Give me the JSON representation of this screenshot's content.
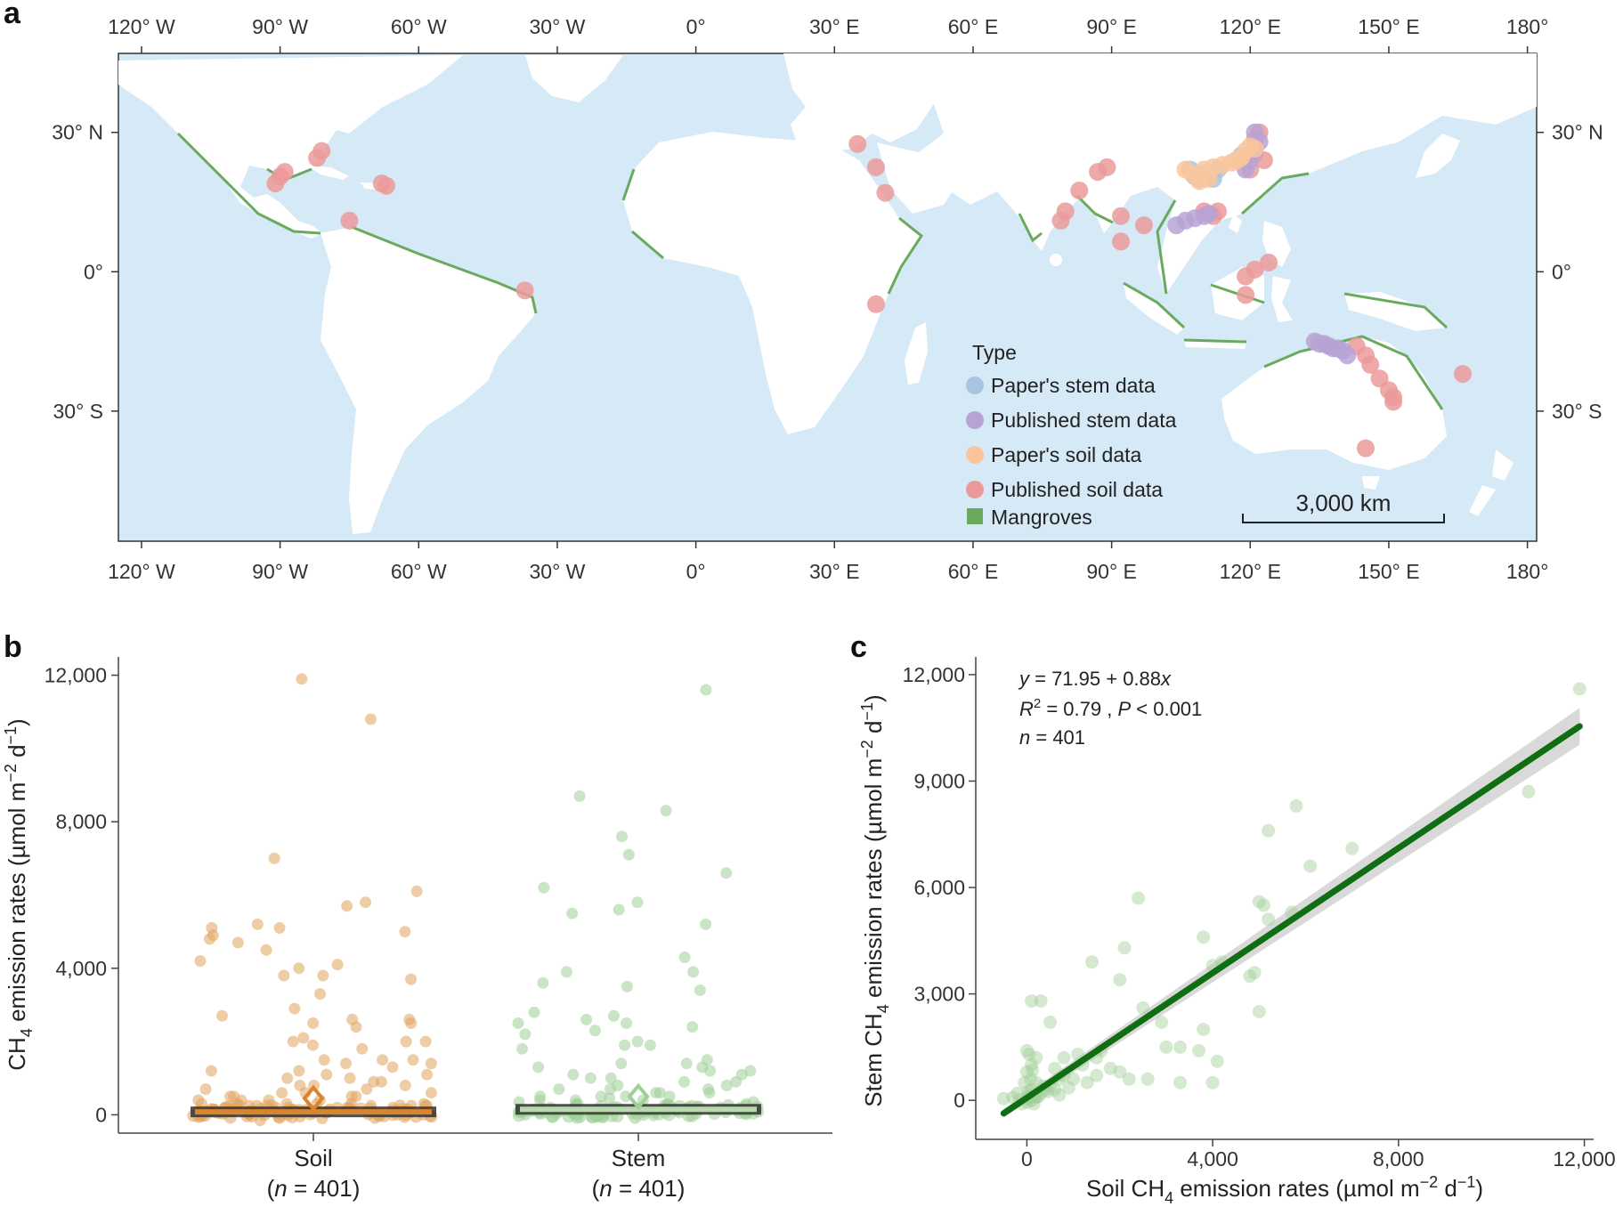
{
  "panel_labels": {
    "a": "a",
    "b": "b",
    "c": "c"
  },
  "colors": {
    "ocean": "#d5e9f7",
    "land": "#ffffff",
    "mangrove": "#6aaa5e",
    "papers_stem": "#a9c4e0",
    "published_stem": "#b7a3d4",
    "papers_soil": "#f9c59d",
    "published_soil": "#eb9a9a",
    "soil_points": "#e0a45c",
    "stem_points": "#9fcf97",
    "fit_line": "#0f6e12",
    "ci_band": "#cfcfcf"
  },
  "chart_data": [
    {
      "type": "scatter",
      "panel": "a",
      "title": "",
      "x_ticks_top": [
        "120° W",
        "90° W",
        "60° W",
        "30° W",
        "0°",
        "30° E",
        "60° E",
        "90° E",
        "120° E",
        "150° E",
        "180°"
      ],
      "x_ticks_bottom": [
        "120° W",
        "90° W",
        "60° W",
        "30° W",
        "0°",
        "30° E",
        "60° E",
        "90° E",
        "120° E",
        "150° E",
        "180°"
      ],
      "y_ticks_left": [
        "30° N",
        "0°",
        "30° S"
      ],
      "y_ticks_right": [
        "30° N",
        "0°",
        "30° S"
      ],
      "xlim": [
        -125,
        182
      ],
      "ylim": [
        -58,
        47
      ],
      "legend": {
        "title": "Type",
        "placement": "bottom-right",
        "items": [
          "Paper's stem data",
          "Published stem data",
          "Paper's soil data",
          "Published soil data",
          "Mangroves"
        ]
      },
      "scale_bar": "3,000 km",
      "series": [
        {
          "name": "Published soil data",
          "points": [
            [
              -91,
              19
            ],
            [
              -90,
              20.5
            ],
            [
              -89,
              21.5
            ],
            [
              -81,
              26
            ],
            [
              -82,
              24.5
            ],
            [
              -68,
              19
            ],
            [
              -67,
              18.5
            ],
            [
              -75,
              11
            ],
            [
              -37,
              -4
            ],
            [
              35,
              27.5
            ],
            [
              39,
              22.5
            ],
            [
              41,
              17
            ],
            [
              39,
              -7
            ],
            [
              79,
              11
            ],
            [
              80,
              13
            ],
            [
              83,
              17.5
            ],
            [
              87,
              21.5
            ],
            [
              89,
              22.5
            ],
            [
              92,
              12
            ],
            [
              92,
              6.5
            ],
            [
              97,
              10
            ],
            [
              121,
              0.5
            ],
            [
              124,
              2
            ],
            [
              119,
              -1
            ],
            [
              119,
              -5
            ],
            [
              120,
              22
            ],
            [
              121,
              25.5
            ],
            [
              121,
              28.5
            ],
            [
              122,
              30
            ],
            [
              123,
              24
            ],
            [
              110,
              13
            ],
            [
              112,
              12
            ],
            [
              113,
              13
            ],
            [
              143,
              -16
            ],
            [
              145,
              -18
            ],
            [
              146,
              -20
            ],
            [
              148,
              -23
            ],
            [
              150,
              -25.5
            ],
            [
              151,
              -28
            ],
            [
              151,
              -27
            ],
            [
              166,
              -22
            ],
            [
              145,
              -38
            ]
          ]
        },
        {
          "name": "Published stem data",
          "points": [
            [
              104,
              10
            ],
            [
              106,
              11
            ],
            [
              108,
              11.5
            ],
            [
              110,
              12
            ],
            [
              111,
              12.5
            ],
            [
              121,
              30
            ],
            [
              122,
              28
            ],
            [
              121,
              26
            ],
            [
              120,
              24
            ],
            [
              119,
              22
            ],
            [
              134,
              -15
            ],
            [
              135,
              -15.5
            ],
            [
              136,
              -15.5
            ],
            [
              137,
              -16
            ],
            [
              138,
              -16.5
            ],
            [
              139,
              -16.5
            ],
            [
              140,
              -17
            ],
            [
              141,
              -18
            ]
          ]
        },
        {
          "name": "Paper's stem data",
          "points": [
            [
              107,
              22
            ],
            [
              108,
              20.5
            ],
            [
              109,
              20
            ],
            [
              110,
              21
            ],
            [
              112,
              20
            ],
            [
              113,
              22
            ],
            [
              117,
              24
            ],
            [
              118,
              25
            ]
          ]
        },
        {
          "name": "Paper's soil data",
          "points": [
            [
              106,
              22
            ],
            [
              107.5,
              21
            ],
            [
              109,
              19.5
            ],
            [
              110,
              22
            ],
            [
              111,
              20
            ],
            [
              112,
              22.5
            ],
            [
              114,
              23
            ],
            [
              116,
              23.5
            ],
            [
              117,
              24
            ],
            [
              118,
              24.5
            ],
            [
              119,
              26
            ],
            [
              120,
              27
            ],
            [
              121,
              26.5
            ]
          ]
        }
      ]
    },
    {
      "type": "scatter",
      "panel": "b",
      "ylabel": "CH4 emission rates (µmol m-2 d-1)",
      "ylabel_parts": {
        "a": "CH",
        "sub": "4",
        "b": " emission rates (µmol m",
        "sup1": "−2",
        "c": " d",
        "sup2": "−1",
        "d": ")"
      },
      "ylim": [
        -500,
        12500
      ],
      "yticks": [
        0,
        4000,
        8000,
        12000
      ],
      "ytick_labels": [
        "0",
        "4,000",
        "8,000",
        "12,000"
      ],
      "categories": [
        {
          "name": "Soil",
          "n_label": "n = 401",
          "n_italic": "n",
          "n_rest": " = 401",
          "mean": 450,
          "median": 80,
          "points": [
            11900,
            10800,
            7000,
            6100,
            5800,
            5700,
            5200,
            5100,
            5100,
            5000,
            4900,
            4800,
            4700,
            4500,
            4200,
            4100,
            4000,
            3800,
            3800,
            3700,
            3300,
            2900,
            2700,
            2600,
            2600,
            2500,
            2500,
            2400,
            2100,
            2000,
            2000,
            2000,
            1900,
            1800,
            1500,
            1500,
            1500,
            1400,
            1400,
            1300,
            1200,
            1200,
            1100,
            1100,
            1000,
            1000,
            900,
            900,
            800,
            800,
            800,
            700,
            700,
            600,
            600,
            600,
            500,
            500,
            500,
            500,
            400,
            400,
            400,
            400,
            300,
            300,
            300,
            300,
            300,
            300,
            250,
            250,
            250,
            250,
            200,
            200,
            200,
            200,
            200,
            150,
            150,
            150,
            150,
            100,
            100,
            100,
            100,
            100,
            100,
            80,
            80,
            80,
            60,
            60,
            60,
            50,
            50,
            50,
            40,
            30,
            20,
            10,
            0,
            -50,
            -100,
            -150
          ]
        },
        {
          "name": "Stem",
          "n_label": "n = 401",
          "n_italic": "n",
          "n_rest": " = 401",
          "mean": 500,
          "median": 150,
          "points": [
            11600,
            8700,
            8300,
            7600,
            7100,
            6600,
            6200,
            5800,
            5600,
            5500,
            5200,
            4300,
            3900,
            3900,
            3600,
            3500,
            3400,
            2800,
            2700,
            2600,
            2500,
            2500,
            2400,
            2300,
            2200,
            2000,
            1900,
            1900,
            1800,
            1500,
            1400,
            1400,
            1300,
            1300,
            1200,
            1200,
            1100,
            1100,
            1000,
            1000,
            900,
            900,
            800,
            800,
            700,
            700,
            700,
            600,
            600,
            600,
            500,
            500,
            500,
            500,
            450,
            400,
            400,
            400,
            350,
            350,
            300,
            300,
            300,
            300,
            250,
            250,
            250,
            200,
            200,
            200,
            200,
            150,
            150,
            150,
            150,
            100,
            100,
            100,
            100,
            80,
            80,
            80,
            60,
            60,
            50,
            50,
            40,
            30,
            20,
            10,
            0,
            -20
          ]
        }
      ]
    },
    {
      "type": "scatter",
      "panel": "c",
      "xlabel": "Soil CH4 emission rates (µmol m-2 d-1)",
      "ylabel": "Stem CH4 emission rates (µmol m-2 d-1)",
      "xlabel_parts": {
        "a": "Soil CH",
        "sub": "4",
        "b": " emission rates (µmol m",
        "sup1": "−2",
        "c": " d",
        "sup2": "−1",
        "d": ")"
      },
      "ylabel_parts": {
        "a": "Stem CH",
        "sub": "4",
        "b": " emission rates (µmol m",
        "sup1": "−2",
        "c": " d",
        "sup2": "−1",
        "d": ")"
      },
      "xlim": [
        -1100,
        12200
      ],
      "ylim": [
        -1100,
        12500
      ],
      "xticks": [
        0,
        4000,
        8000,
        12000
      ],
      "xtick_labels": [
        "0",
        "4,000",
        "8,000",
        "12,000"
      ],
      "yticks": [
        0,
        3000,
        6000,
        9000,
        12000
      ],
      "ytick_labels": [
        "0",
        "3,000",
        "6,000",
        "9,000",
        "12,000"
      ],
      "annotations": {
        "eq_y": "y",
        "eq_mid": " = 71.95 + 0.88",
        "eq_x": "x",
        "r2_R": "R",
        "r2_sup": "2",
        "r2_mid": " = 0.79 , ",
        "r2_P": "P",
        "r2_end": " < 0.001",
        "n_n": "n",
        "n_rest": " = 401"
      },
      "fit": {
        "intercept": 71.95,
        "slope": 0.88,
        "x_range": [
          -500,
          11900
        ]
      },
      "points": [
        [
          11900,
          11600
        ],
        [
          10800,
          8700
        ],
        [
          7000,
          7100
        ],
        [
          5800,
          8300
        ],
        [
          5200,
          7600
        ],
        [
          6100,
          6600
        ],
        [
          5700,
          5300
        ],
        [
          5100,
          5500
        ],
        [
          5000,
          5600
        ],
        [
          5200,
          5100
        ],
        [
          4900,
          3600
        ],
        [
          4800,
          3500
        ],
        [
          5000,
          2500
        ],
        [
          4000,
          3800
        ],
        [
          4200,
          3900
        ],
        [
          3800,
          4600
        ],
        [
          2400,
          5700
        ],
        [
          2100,
          4300
        ],
        [
          2500,
          2600
        ],
        [
          2000,
          3400
        ],
        [
          1400,
          3900
        ],
        [
          1100,
          1300
        ],
        [
          1600,
          1400
        ],
        [
          2900,
          2200
        ],
        [
          3000,
          1500
        ],
        [
          3300,
          1500
        ],
        [
          3700,
          1400
        ],
        [
          3800,
          2000
        ],
        [
          4100,
          1100
        ],
        [
          4000,
          500
        ],
        [
          3300,
          500
        ],
        [
          2600,
          600
        ],
        [
          2000,
          800
        ],
        [
          1500,
          1200
        ],
        [
          1500,
          700
        ],
        [
          1300,
          500
        ],
        [
          1000,
          600
        ],
        [
          800,
          700
        ],
        [
          800,
          1200
        ],
        [
          700,
          600
        ],
        [
          600,
          900
        ],
        [
          500,
          400
        ],
        [
          400,
          300
        ],
        [
          300,
          200
        ],
        [
          200,
          500
        ],
        [
          200,
          100
        ],
        [
          100,
          300
        ],
        [
          100,
          0
        ],
        [
          50,
          150
        ],
        [
          0,
          50
        ],
        [
          -100,
          -100
        ],
        [
          -300,
          80
        ],
        [
          -500,
          50
        ],
        [
          0,
          800
        ],
        [
          100,
          1000
        ],
        [
          200,
          1200
        ],
        [
          50,
          1300
        ],
        [
          0,
          1400
        ],
        [
          100,
          2800
        ],
        [
          300,
          2800
        ],
        [
          500,
          2200
        ],
        [
          -200,
          200
        ],
        [
          150,
          -100
        ],
        [
          250,
          100
        ],
        [
          350,
          400
        ],
        [
          450,
          250
        ],
        [
          600,
          300
        ],
        [
          700,
          150
        ],
        [
          900,
          350
        ],
        [
          1200,
          1000
        ],
        [
          1800,
          900
        ],
        [
          2200,
          600
        ],
        [
          80,
          600
        ],
        [
          120,
          850
        ],
        [
          -50,
          500
        ],
        [
          30,
          250
        ],
        [
          60,
          100
        ],
        [
          10,
          -50
        ],
        [
          -150,
          20
        ],
        [
          180,
          80
        ]
      ]
    }
  ]
}
